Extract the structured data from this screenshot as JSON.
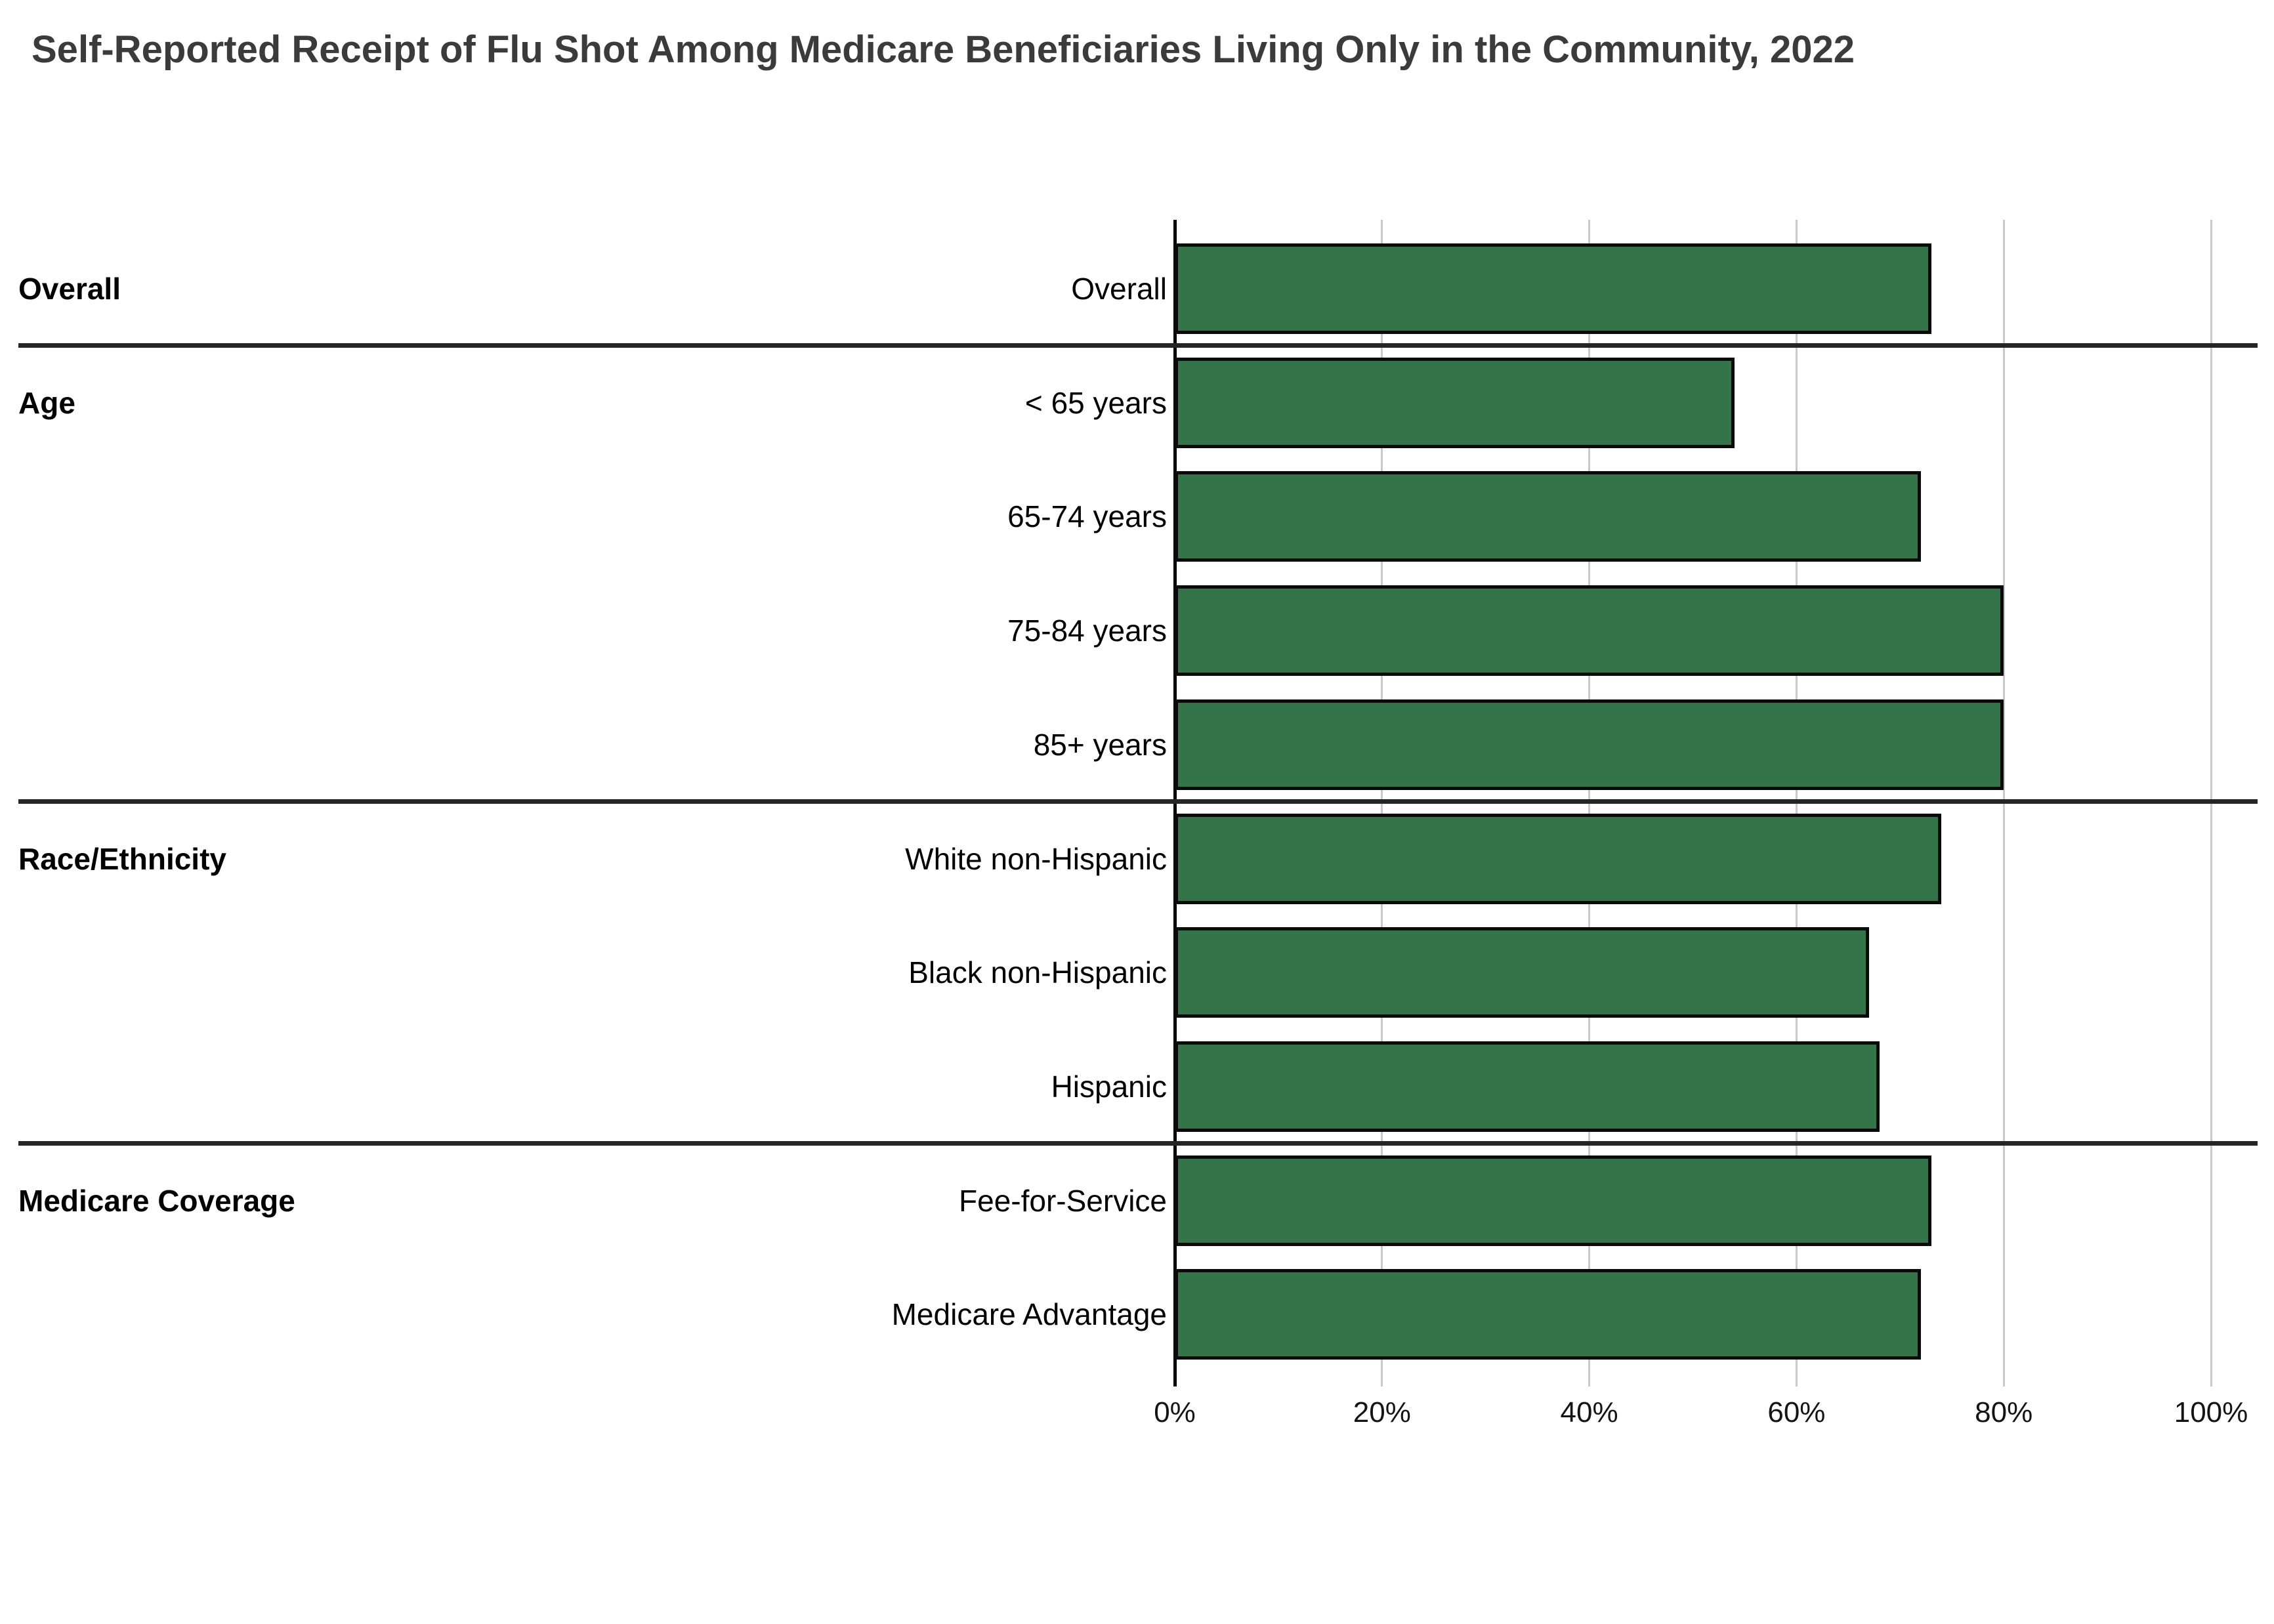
{
  "title": "Self-Reported Receipt of Flu Shot Among Medicare Beneficiaries Living Only in the Community, 2022",
  "colors": {
    "bar_fill": "#337449",
    "bar_border": "#0a0a0a",
    "gridline": "#c9c9c9",
    "zero_axis": "#000000",
    "section_divider": "#262626",
    "title_text": "#3b3b3b",
    "label_text": "#000000"
  },
  "axis": {
    "ticks": [
      {
        "label": "0%",
        "value": 0
      },
      {
        "label": "20%",
        "value": 20
      },
      {
        "label": "40%",
        "value": 40
      },
      {
        "label": "60%",
        "value": 60
      },
      {
        "label": "80%",
        "value": 80
      },
      {
        "label": "100%",
        "value": 100
      }
    ]
  },
  "sections": [
    {
      "label": "Overall",
      "rows": [
        {
          "label": "Overall",
          "value": 73
        }
      ]
    },
    {
      "label": "Age",
      "rows": [
        {
          "label": "< 65 years",
          "value": 54
        },
        {
          "label": "65-74 years",
          "value": 72
        },
        {
          "label": "75-84 years",
          "value": 80
        },
        {
          "label": "85+ years",
          "value": 80
        }
      ]
    },
    {
      "label": "Race/Ethnicity",
      "rows": [
        {
          "label": "White non-Hispanic",
          "value": 74
        },
        {
          "label": "Black non-Hispanic",
          "value": 67
        },
        {
          "label": "Hispanic",
          "value": 68
        }
      ]
    },
    {
      "label": "Medicare Coverage",
      "rows": [
        {
          "label": "Fee-for-Service",
          "value": 73
        },
        {
          "label": "Medicare Advantage",
          "value": 72
        }
      ]
    }
  ],
  "chart_data": {
    "type": "bar",
    "orientation": "horizontal",
    "title": "Self-Reported Receipt of Flu Shot Among Medicare Beneficiaries Living Only in the Community, 2022",
    "categories": [
      "Overall",
      "< 65 years",
      "65-74 years",
      "75-84 years",
      "85+ years",
      "White non-Hispanic",
      "Black non-Hispanic",
      "Hispanic",
      "Fee-for-Service",
      "Medicare Advantage"
    ],
    "values": [
      73,
      54,
      72,
      80,
      80,
      74,
      67,
      68,
      73,
      72
    ],
    "groups": [
      {
        "group": "Overall",
        "categories": [
          "Overall"
        ]
      },
      {
        "group": "Age",
        "categories": [
          "< 65 years",
          "65-74 years",
          "75-84 years",
          "85+ years"
        ]
      },
      {
        "group": "Race/Ethnicity",
        "categories": [
          "White non-Hispanic",
          "Black non-Hispanic",
          "Hispanic"
        ]
      },
      {
        "group": "Medicare Coverage",
        "categories": [
          "Fee-for-Service",
          "Medicare Advantage"
        ]
      }
    ],
    "xlabel": "",
    "ylabel": "",
    "xlim": [
      0,
      100
    ],
    "xticks": [
      "0%",
      "20%",
      "40%",
      "60%",
      "80%",
      "100%"
    ],
    "unit": "percent",
    "grid": true,
    "legend": false,
    "bar_color": "#337449"
  }
}
